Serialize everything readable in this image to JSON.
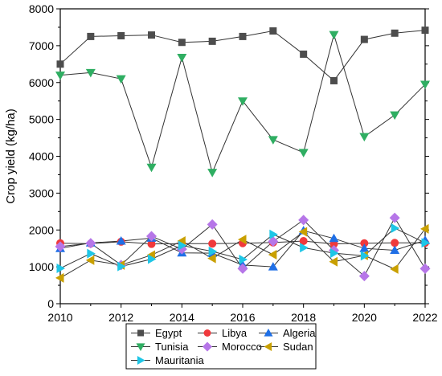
{
  "chart_data": {
    "type": "line",
    "ylabel": "Crop yield (kg/ha)",
    "xlabel": "",
    "xlim": [
      2010,
      2022
    ],
    "ylim": [
      0,
      8000
    ],
    "x_ticks": [
      2010,
      2012,
      2014,
      2016,
      2018,
      2020,
      2022
    ],
    "y_ticks": [
      0,
      1000,
      2000,
      3000,
      4000,
      5000,
      6000,
      7000,
      8000
    ],
    "grid": false,
    "legend_position": "bottom",
    "x": [
      2010,
      2011,
      2012,
      2013,
      2014,
      2015,
      2016,
      2017,
      2018,
      2019,
      2020,
      2021,
      2022
    ],
    "series": [
      {
        "name": "Egypt",
        "marker": "square",
        "color": "#4d4d4d",
        "values": [
          6500,
          7250,
          7270,
          7290,
          7090,
          7120,
          7250,
          7400,
          6770,
          6050,
          7170,
          7340,
          7420
        ]
      },
      {
        "name": "Libya",
        "marker": "circle",
        "color": "#f0393c",
        "values": [
          1640,
          1630,
          1680,
          1620,
          1630,
          1630,
          1640,
          1660,
          1700,
          1620,
          1640,
          1650,
          1650
        ]
      },
      {
        "name": "Algeria",
        "marker": "triangle-up",
        "color": "#1f6fe6",
        "values": [
          1500,
          1650,
          1700,
          1780,
          1380,
          1370,
          1050,
          1000,
          1980,
          1770,
          1500,
          1450,
          1720
        ]
      },
      {
        "name": "Tunisia",
        "marker": "triangle-down",
        "color": "#2fae62",
        "values": [
          6200,
          6270,
          6100,
          3700,
          6680,
          3560,
          5500,
          4450,
          4100,
          7300,
          4530,
          5120,
          5950
        ]
      },
      {
        "name": "Morocco",
        "marker": "diamond",
        "color": "#b676e8",
        "values": [
          1550,
          1640,
          1050,
          1830,
          1480,
          2150,
          950,
          1690,
          2270,
          1450,
          750,
          2330,
          950
        ]
      },
      {
        "name": "Sudan",
        "marker": "triangle-left",
        "color": "#c9a000",
        "values": [
          700,
          1180,
          1050,
          1320,
          1700,
          1230,
          1740,
          1330,
          1950,
          1140,
          1310,
          940,
          2030
        ]
      },
      {
        "name": "Mauritania",
        "marker": "triangle-right",
        "color": "#1ec6e6",
        "values": [
          960,
          1360,
          1010,
          1210,
          1580,
          1420,
          1200,
          1880,
          1520,
          1370,
          1300,
          2050,
          1650
        ]
      }
    ]
  }
}
